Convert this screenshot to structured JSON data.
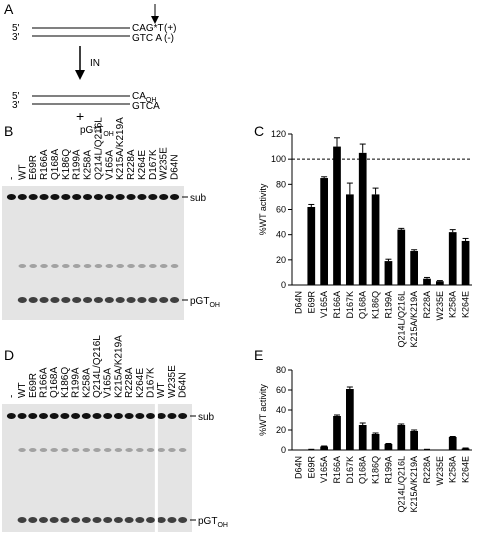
{
  "panels": [
    "A",
    "B",
    "C",
    "D",
    "E"
  ],
  "schematic": {
    "top": {
      "five": "5'",
      "three": "3'",
      "plus_seq": "CAG*T",
      "plus_sign": "(+)",
      "minus_seq": "GTC A",
      "minus_sign": "(-)"
    },
    "enzyme": "IN",
    "bottom": {
      "five": "5'",
      "three": "3'",
      "plus_seq": "CA",
      "plus_sub": "OH",
      "minus_seq": "GTCA"
    },
    "plus": "+",
    "product": "pG*T",
    "product_sub": "OH"
  },
  "gels": [
    {
      "lanes": [
        "-",
        "WT",
        "E69R",
        "R166A",
        "Q168A",
        "K186Q",
        "R199A",
        "K258A",
        "Q214L/Q216L",
        "V165A",
        "K215A/K219A",
        "R228A",
        "K264E",
        "D167K",
        "W235E",
        "D64N"
      ],
      "sub_label": "sub",
      "product_label": "pGT",
      "product_sub": "OH"
    },
    {
      "lanes": [
        "-",
        "WT",
        "E69R",
        "R166A",
        "Q168A",
        "K186Q",
        "R199A",
        "K258A",
        "Q214L/Q216L",
        "V165A",
        "K215A/K219A",
        "R228A",
        "K264E",
        "D167K",
        "WT",
        "W235E",
        "D64N"
      ],
      "sub_label": "sub",
      "product_label": "pGT",
      "product_sub": "OH"
    }
  ],
  "chart_data": [
    {
      "type": "bar",
      "y_label": "%WT activity",
      "color": "#000000",
      "categories": [
        "D64N",
        "E69R",
        "V165A",
        "R166A",
        "D167K",
        "Q168A",
        "K186Q",
        "R199A",
        "Q214L/Q216L",
        "K215A/K219A",
        "R228A",
        "W235E",
        "K258A",
        "K264E"
      ],
      "values": [
        0,
        62,
        85,
        110,
        72,
        105,
        72,
        19,
        44,
        27,
        5,
        3,
        42,
        35
      ],
      "errors": [
        0,
        2,
        1,
        7,
        9,
        7,
        5,
        1.5,
        1,
        1,
        1,
        0.5,
        2,
        2
      ],
      "ylim": [
        0,
        120
      ],
      "yticks": [
        0,
        20,
        40,
        60,
        80,
        100,
        120
      ],
      "reference_line": 100
    },
    {
      "type": "bar",
      "y_label": "%WT activity",
      "color": "#000000",
      "categories": [
        "D64N",
        "E69R",
        "V165A",
        "R166A",
        "D167K",
        "Q168A",
        "K186Q",
        "R199A",
        "Q214L/Q216L",
        "K215A/K219A",
        "R228A",
        "W235E",
        "K258A",
        "K264E"
      ],
      "values": [
        0,
        0.5,
        3.5,
        34,
        61,
        25,
        16,
        6,
        25,
        19,
        0.5,
        0,
        13,
        1.5
      ],
      "errors": [
        0,
        0.2,
        0.5,
        1,
        2,
        2,
        1,
        0.5,
        1,
        1,
        0.2,
        0,
        0.5,
        0.5
      ],
      "ylim": [
        0,
        80
      ],
      "yticks": [
        0,
        20,
        40,
        60,
        80
      ]
    }
  ]
}
